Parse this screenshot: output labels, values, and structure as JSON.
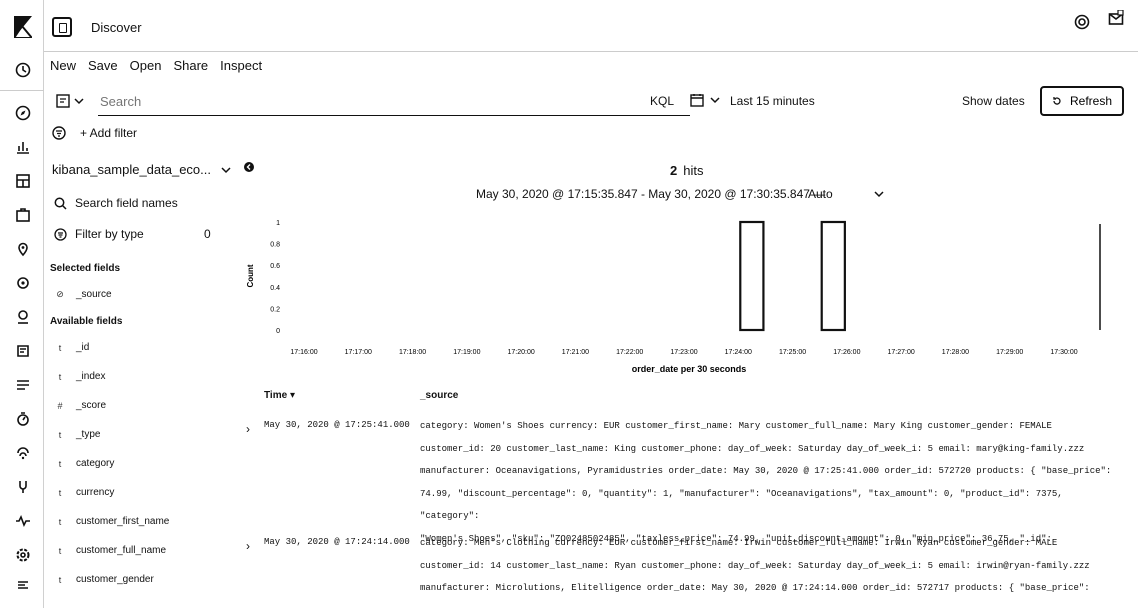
{
  "header": {
    "title": "Discover"
  },
  "topmenu": [
    "New",
    "Save",
    "Open",
    "Share",
    "Inspect"
  ],
  "search": {
    "placeholder": "Search",
    "kql": "KQL",
    "date_range": "Last 15 minutes",
    "show_dates": "Show dates",
    "refresh": "Refresh"
  },
  "filter": {
    "add_label": "+ Add filter"
  },
  "sidebar": {
    "index_pattern": "kibana_sample_data_eco...",
    "search_fields": "Search field names",
    "filter_by_type": "Filter by type",
    "filter_count": "0",
    "selected_heading": "Selected fields",
    "selected_fields": [
      {
        "type": "⊘",
        "name": "_source"
      }
    ],
    "available_heading": "Available fields",
    "available_fields": [
      {
        "type": "t",
        "name": "_id"
      },
      {
        "type": "t",
        "name": "_index"
      },
      {
        "type": "#",
        "name": "_score"
      },
      {
        "type": "t",
        "name": "_type"
      },
      {
        "type": "t",
        "name": "category"
      },
      {
        "type": "t",
        "name": "currency"
      },
      {
        "type": "t",
        "name": "customer_first_name"
      },
      {
        "type": "t",
        "name": "customer_full_name"
      },
      {
        "type": "t",
        "name": "customer_gender"
      }
    ]
  },
  "main": {
    "hits_count": "2",
    "hits_label": "hits",
    "time_range": "May 30, 2020 @ 17:15:35.847 - May 30, 2020 @ 17:30:35.847 —",
    "interval": "Auto"
  },
  "chart_data": {
    "type": "bar",
    "xlabel": "order_date per 30 seconds",
    "ylabel": "Count",
    "ylim": [
      0,
      1
    ],
    "yticks": [
      "0",
      "0.2",
      "0.4",
      "0.6",
      "0.8",
      "1"
    ],
    "categories": [
      "17:16:00",
      "17:17:00",
      "17:18:00",
      "17:19:00",
      "17:20:00",
      "17:21:00",
      "17:22:00",
      "17:23:00",
      "17:24:00",
      "17:25:00",
      "17:26:00",
      "17:27:00",
      "17:28:00",
      "17:29:00",
      "17:30:00"
    ],
    "bars": [
      {
        "x": "17:24:00",
        "value": 1
      },
      {
        "x": "17:25:30",
        "value": 1
      }
    ]
  },
  "table": {
    "col_time": "Time ▾",
    "col_source": "_source",
    "rows": [
      {
        "time": "May 30, 2020 @ 17:25:41.000",
        "lines": [
          "category: Women's Shoes  currency: EUR  customer_first_name: Mary  customer_full_name: Mary King  customer_gender: FEMALE",
          "customer_id: 20  customer_last_name: King  customer_phone:   day_of_week: Saturday  day_of_week_i: 5  email: mary@king-family.zzz",
          "manufacturer: Oceanavigations, Pyramidustries  order_date: May 30, 2020 @ 17:25:41.000  order_id: 572720  products: { \"base_price\":",
          "74.99, \"discount_percentage\": 0, \"quantity\": 1, \"manufacturer\": \"Oceanavigations\", \"tax_amount\": 0, \"product_id\": 7375, \"category\":",
          "\"Women's Shoes\", \"sku\": \"ZO0248502485\", \"taxless_price\": 74.99, \"unit_discount_amount\": 0, \"min_price\": 36.75, \"_id\":"
        ]
      },
      {
        "time": "May 30, 2020 @ 17:24:14.000",
        "lines": [
          "category: Men's Clothing  currency: EUR  customer_first_name: Irwin  customer_full_name: Irwin Ryan  customer_gender: MALE",
          "customer_id: 14  customer_last_name: Ryan  customer_phone:   day_of_week: Saturday  day_of_week_i: 5  email: irwin@ryan-family.zzz",
          "manufacturer: Microlutions, Elitelligence  order_date: May 30, 2020 @ 17:24:14.000  order_id: 572717  products: { \"base_price\":"
        ]
      }
    ]
  }
}
